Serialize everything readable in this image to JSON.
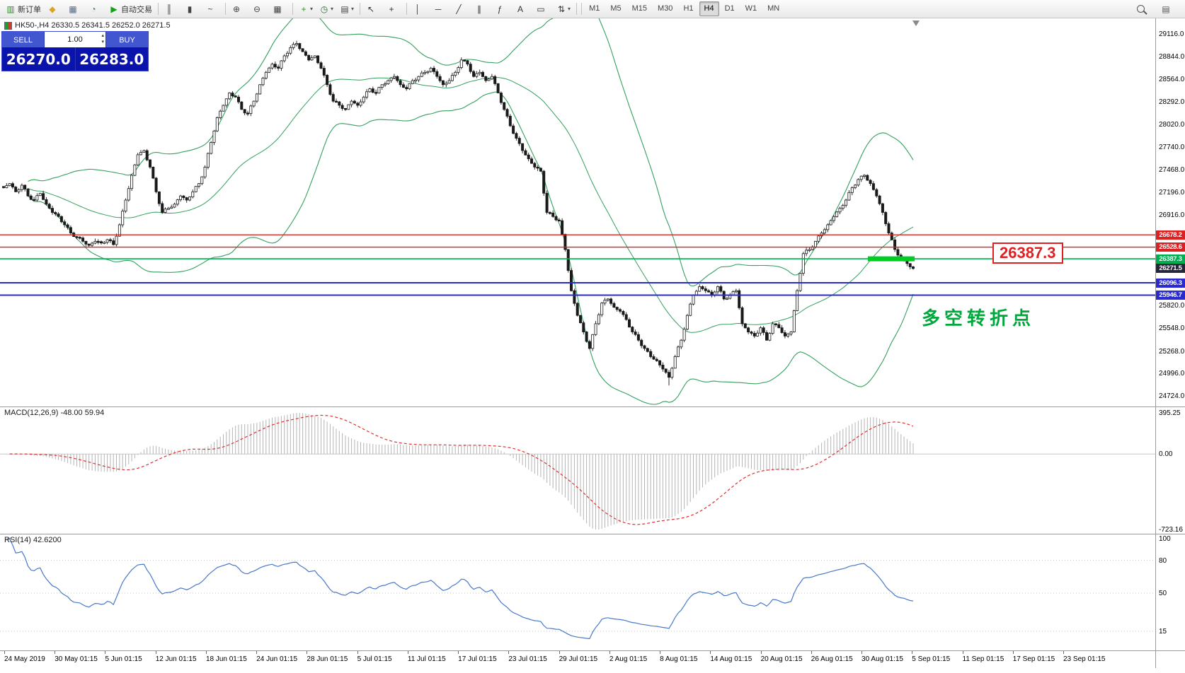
{
  "toolbar": {
    "dropdown_glyph": "▾",
    "buttons": [
      {
        "name": "new-order",
        "label": "新订单",
        "icon": "new-order-icon",
        "glyph": "▥",
        "color": "#2e8b2e"
      },
      {
        "name": "metaeditor",
        "label": "",
        "icon": "metaeditor-icon",
        "glyph": "◆",
        "color": "#d9a520"
      },
      {
        "name": "terminal",
        "label": "",
        "icon": "terminal-icon",
        "glyph": "▦",
        "color": "#5a6a8a"
      },
      {
        "name": "strategy-tester",
        "label": "",
        "icon": "strategy-tester-icon",
        "glyph": "◔",
        "color": "#3a8a5a"
      },
      {
        "name": "autotrading",
        "label": "自动交易",
        "icon": "autotrading-icon",
        "glyph": "▶",
        "color": "#18a018",
        "sep_after": true
      },
      {
        "name": "bar-chart",
        "label": "",
        "icon": "bar-chart-icon",
        "glyph": "║",
        "color": "#444"
      },
      {
        "name": "candlestick-chart",
        "label": "",
        "icon": "candlestick-chart-icon",
        "glyph": "▮",
        "color": "#444"
      },
      {
        "name": "line-chart",
        "label": "",
        "icon": "line-chart-icon",
        "glyph": "~",
        "color": "#444",
        "sep_after": true
      },
      {
        "name": "zoom-in",
        "label": "",
        "icon": "zoom-in-icon",
        "glyph": "⊕",
        "color": "#444"
      },
      {
        "name": "zoom-out",
        "label": "",
        "icon": "zoom-out-icon",
        "glyph": "⊖",
        "color": "#444"
      },
      {
        "name": "tile-windows",
        "label": "",
        "icon": "tile-windows-icon",
        "glyph": "▦",
        "color": "#444",
        "sep_after": true
      },
      {
        "name": "indicators",
        "label": "",
        "icon": "indicators-icon",
        "glyph": "+",
        "color": "#18a018",
        "dropdown": true
      },
      {
        "name": "periods",
        "label": "",
        "icon": "periods-icon",
        "glyph": "◷",
        "color": "#2a6a2a",
        "dropdown": true
      },
      {
        "name": "templates",
        "label": "",
        "icon": "templates-icon",
        "glyph": "▤",
        "color": "#444",
        "dropdown": true,
        "sep_after": true
      },
      {
        "name": "cursor",
        "label": "",
        "icon": "cursor-icon",
        "glyph": "↖",
        "color": "#333"
      },
      {
        "name": "crosshair",
        "label": "",
        "icon": "crosshair-icon",
        "glyph": "+",
        "color": "#333",
        "sep_after": true
      },
      {
        "name": "vertical-line",
        "label": "",
        "icon": "vertical-line-icon",
        "glyph": "│",
        "color": "#333"
      },
      {
        "name": "horizontal-line",
        "label": "",
        "icon": "horizontal-line-icon",
        "glyph": "─",
        "color": "#333"
      },
      {
        "name": "trendline",
        "label": "",
        "icon": "trendline-icon",
        "glyph": "╱",
        "color": "#333"
      },
      {
        "name": "channel",
        "label": "",
        "icon": "channel-icon",
        "glyph": "∥",
        "color": "#333"
      },
      {
        "name": "fibonacci",
        "label": "",
        "icon": "fibonacci-icon",
        "glyph": "ƒ",
        "color": "#333"
      },
      {
        "name": "text",
        "label": "",
        "icon": "text-icon",
        "glyph": "A",
        "color": "#333"
      },
      {
        "name": "label",
        "label": "",
        "icon": "label-icon",
        "glyph": "▭",
        "color": "#333"
      },
      {
        "name": "arrows",
        "label": "",
        "icon": "arrows-icon",
        "glyph": "⇅",
        "color": "#333",
        "dropdown": true,
        "sep_after": true
      }
    ],
    "timeframes": {
      "items": [
        "M1",
        "M5",
        "M15",
        "M30",
        "H1",
        "H4",
        "D1",
        "W1",
        "MN"
      ],
      "active": "H4"
    },
    "right_buttons": [
      {
        "name": "search",
        "icon": "search-icon",
        "cssicon": "magnifier"
      },
      {
        "name": "quotes-panel",
        "icon": "quotes-panel-icon",
        "glyph": "▤",
        "color": "#555"
      }
    ]
  },
  "chart_header": {
    "text": "HK50-,H4  26330.5 26341.5 26252.0 26271.5"
  },
  "trade_panel": {
    "sell_label": "SELL",
    "buy_label": "BUY",
    "volume": "1.00",
    "spinner_up": "▴",
    "spinner_down": "▾",
    "sell_price": "26270.0",
    "buy_price": "26283.0"
  },
  "main_chart": {
    "y_axis_values": [
      29116,
      28844,
      28564,
      28292,
      28020,
      27740,
      27468,
      27196,
      26916,
      25820,
      25548,
      25268,
      24996,
      24724
    ],
    "badge_colors": {
      "red": "#dd2020",
      "green": "#00b050",
      "blue": "#2a2ad0",
      "dark": "#26263a"
    },
    "price_lines": [
      {
        "value": 26678.2,
        "color": "#dd2020",
        "width": 1.4,
        "badge": "red"
      },
      {
        "value": 26528.6,
        "color": "#dd2020",
        "width": 1.4,
        "badge": "red"
      },
      {
        "value": 26387.3,
        "color": "#00b050",
        "width": 1.6,
        "badge": "green"
      },
      {
        "value": 26271.5,
        "color": null,
        "width": 0,
        "badge": "dark"
      },
      {
        "value": 26096.3,
        "color": "#2a2ad0",
        "width": 2,
        "badge": "blue"
      },
      {
        "value": 25946.7,
        "color": "#2a2ad0",
        "width": 2,
        "badge": "blue"
      }
    ],
    "highlight_band": {
      "price": 26387.3,
      "color": "#00cc22"
    },
    "callout_price": "26387.3",
    "annotation_text": "多空转折点"
  },
  "chart_data": {
    "type": "candlestick",
    "symbol": "HK50-",
    "timeframe": "H4",
    "ohlc_header": {
      "open": 26330.5,
      "high": 26341.5,
      "low": 26252.0,
      "close": 26271.5
    },
    "bollinger": {
      "window": 20,
      "mult": 2
    },
    "closes": [
      27250,
      27300,
      27200,
      27280,
      27150,
      27100,
      27180,
      27050,
      26950,
      26900,
      26800,
      26700,
      26650,
      26600,
      26550,
      26600,
      26580,
      26620,
      26560,
      26800,
      27100,
      27400,
      27650,
      27700,
      27500,
      27200,
      26950,
      27000,
      27050,
      27150,
      27100,
      27200,
      27300,
      27500,
      27800,
      28100,
      28250,
      28400,
      28350,
      28200,
      28150,
      28300,
      28500,
      28650,
      28750,
      28700,
      28850,
      28950,
      29000,
      28900,
      28800,
      28850,
      28700,
      28500,
      28300,
      28250,
      28200,
      28300,
      28250,
      28350,
      28450,
      28400,
      28500,
      28550,
      28600,
      28500,
      28450,
      28550,
      28600,
      28650,
      28700,
      28600,
      28500,
      28550,
      28650,
      28800,
      28750,
      28600,
      28650,
      28550,
      28600,
      28400,
      28200,
      28000,
      27850,
      27700,
      27600,
      27500,
      27450,
      26950,
      26900,
      26850,
      26500,
      26000,
      25700,
      25500,
      25300,
      25600,
      25850,
      25900,
      25800,
      25750,
      25650,
      25500,
      25400,
      25300,
      25200,
      25150,
      25050,
      24950,
      25200,
      25400,
      25700,
      25950,
      26050,
      26000,
      25950,
      26050,
      25900,
      25950,
      26000,
      25600,
      25500,
      25450,
      25550,
      25400,
      25600,
      25550,
      25450,
      25500,
      26000,
      26450,
      26500,
      26600,
      26700,
      26800,
      26900,
      27000,
      27100,
      27250,
      27350,
      27400,
      27300,
      27150,
      26950,
      26700,
      26500,
      26400,
      26330,
      26270
    ],
    "macd": {
      "title": "MACD(12,26,9) -48.00 59.94",
      "axis": [
        "395.25",
        "0.00",
        "-723.16"
      ]
    },
    "rsi": {
      "title": "RSI(14) 42.6200",
      "axis": [
        "100",
        "80",
        "50",
        "15"
      ]
    },
    "x_axis_labels": [
      "24 May 2019",
      "30 May 01:15",
      "5 Jun 01:15",
      "12 Jun 01:15",
      "18 Jun 01:15",
      "24 Jun 01:15",
      "28 Jun 01:15",
      "5 Jul 01:15",
      "11 Jul 01:15",
      "17 Jul 01:15",
      "23 Jul 01:15",
      "29 Jul 01:15",
      "2 Aug 01:15",
      "8 Aug 01:15",
      "14 Aug 01:15",
      "20 Aug 01:15",
      "26 Aug 01:15",
      "30 Aug 01:15",
      "5 Sep 01:15",
      "11 Sep 01:15",
      "17 Sep 01:15",
      "23 Sep 01:15"
    ]
  }
}
